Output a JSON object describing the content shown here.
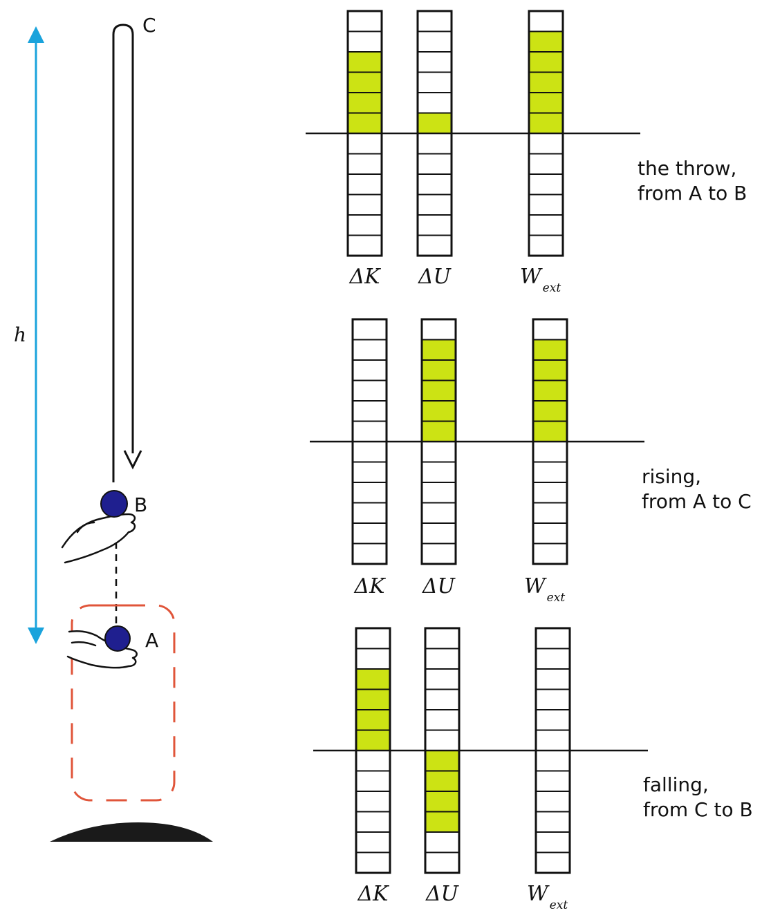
{
  "scene": {
    "point_labels": {
      "a": "A",
      "b": "B",
      "c": "C"
    },
    "height_label": "h",
    "colors": {
      "height_arrow": "#1aa3dc",
      "system_boundary": "#e0553a",
      "ball": "#1f1f8f",
      "filled_bar": "#cce314",
      "ground": "#1a1a1a"
    }
  },
  "charts": [
    {
      "caption_line1": "the throw,",
      "caption_line2": "from A to B",
      "bars": [
        {
          "symbol": "ΔK",
          "subscript": "",
          "value": 4
        },
        {
          "symbol": "ΔU",
          "subscript": "",
          "value": 1
        },
        {
          "symbol": "W",
          "subscript": "ext",
          "value": 5
        }
      ]
    },
    {
      "caption_line1": "rising,",
      "caption_line2": "from A to C",
      "bars": [
        {
          "symbol": "ΔK",
          "subscript": "",
          "value": 0
        },
        {
          "symbol": "ΔU",
          "subscript": "",
          "value": 5
        },
        {
          "symbol": "W",
          "subscript": "ext",
          "value": 5
        }
      ]
    },
    {
      "caption_line1": "falling,",
      "caption_line2": "from C to B",
      "bars": [
        {
          "symbol": "ΔK",
          "subscript": "",
          "value": 4
        },
        {
          "symbol": "ΔU",
          "subscript": "",
          "value": -4
        },
        {
          "symbol": "W",
          "subscript": "ext",
          "value": 0
        }
      ]
    }
  ],
  "chart_data": [
    {
      "type": "bar",
      "title": "the throw, from A to B",
      "categories": [
        "ΔK",
        "ΔU",
        "W_ext"
      ],
      "values": [
        4,
        1,
        5
      ],
      "ylim": [
        -6,
        6
      ]
    },
    {
      "type": "bar",
      "title": "rising, from A to C",
      "categories": [
        "ΔK",
        "ΔU",
        "W_ext"
      ],
      "values": [
        0,
        5,
        5
      ],
      "ylim": [
        -6,
        6
      ]
    },
    {
      "type": "bar",
      "title": "falling, from C to B",
      "categories": [
        "ΔK",
        "ΔU",
        "W_ext"
      ],
      "values": [
        4,
        -4,
        0
      ],
      "ylim": [
        -6,
        6
      ]
    }
  ]
}
